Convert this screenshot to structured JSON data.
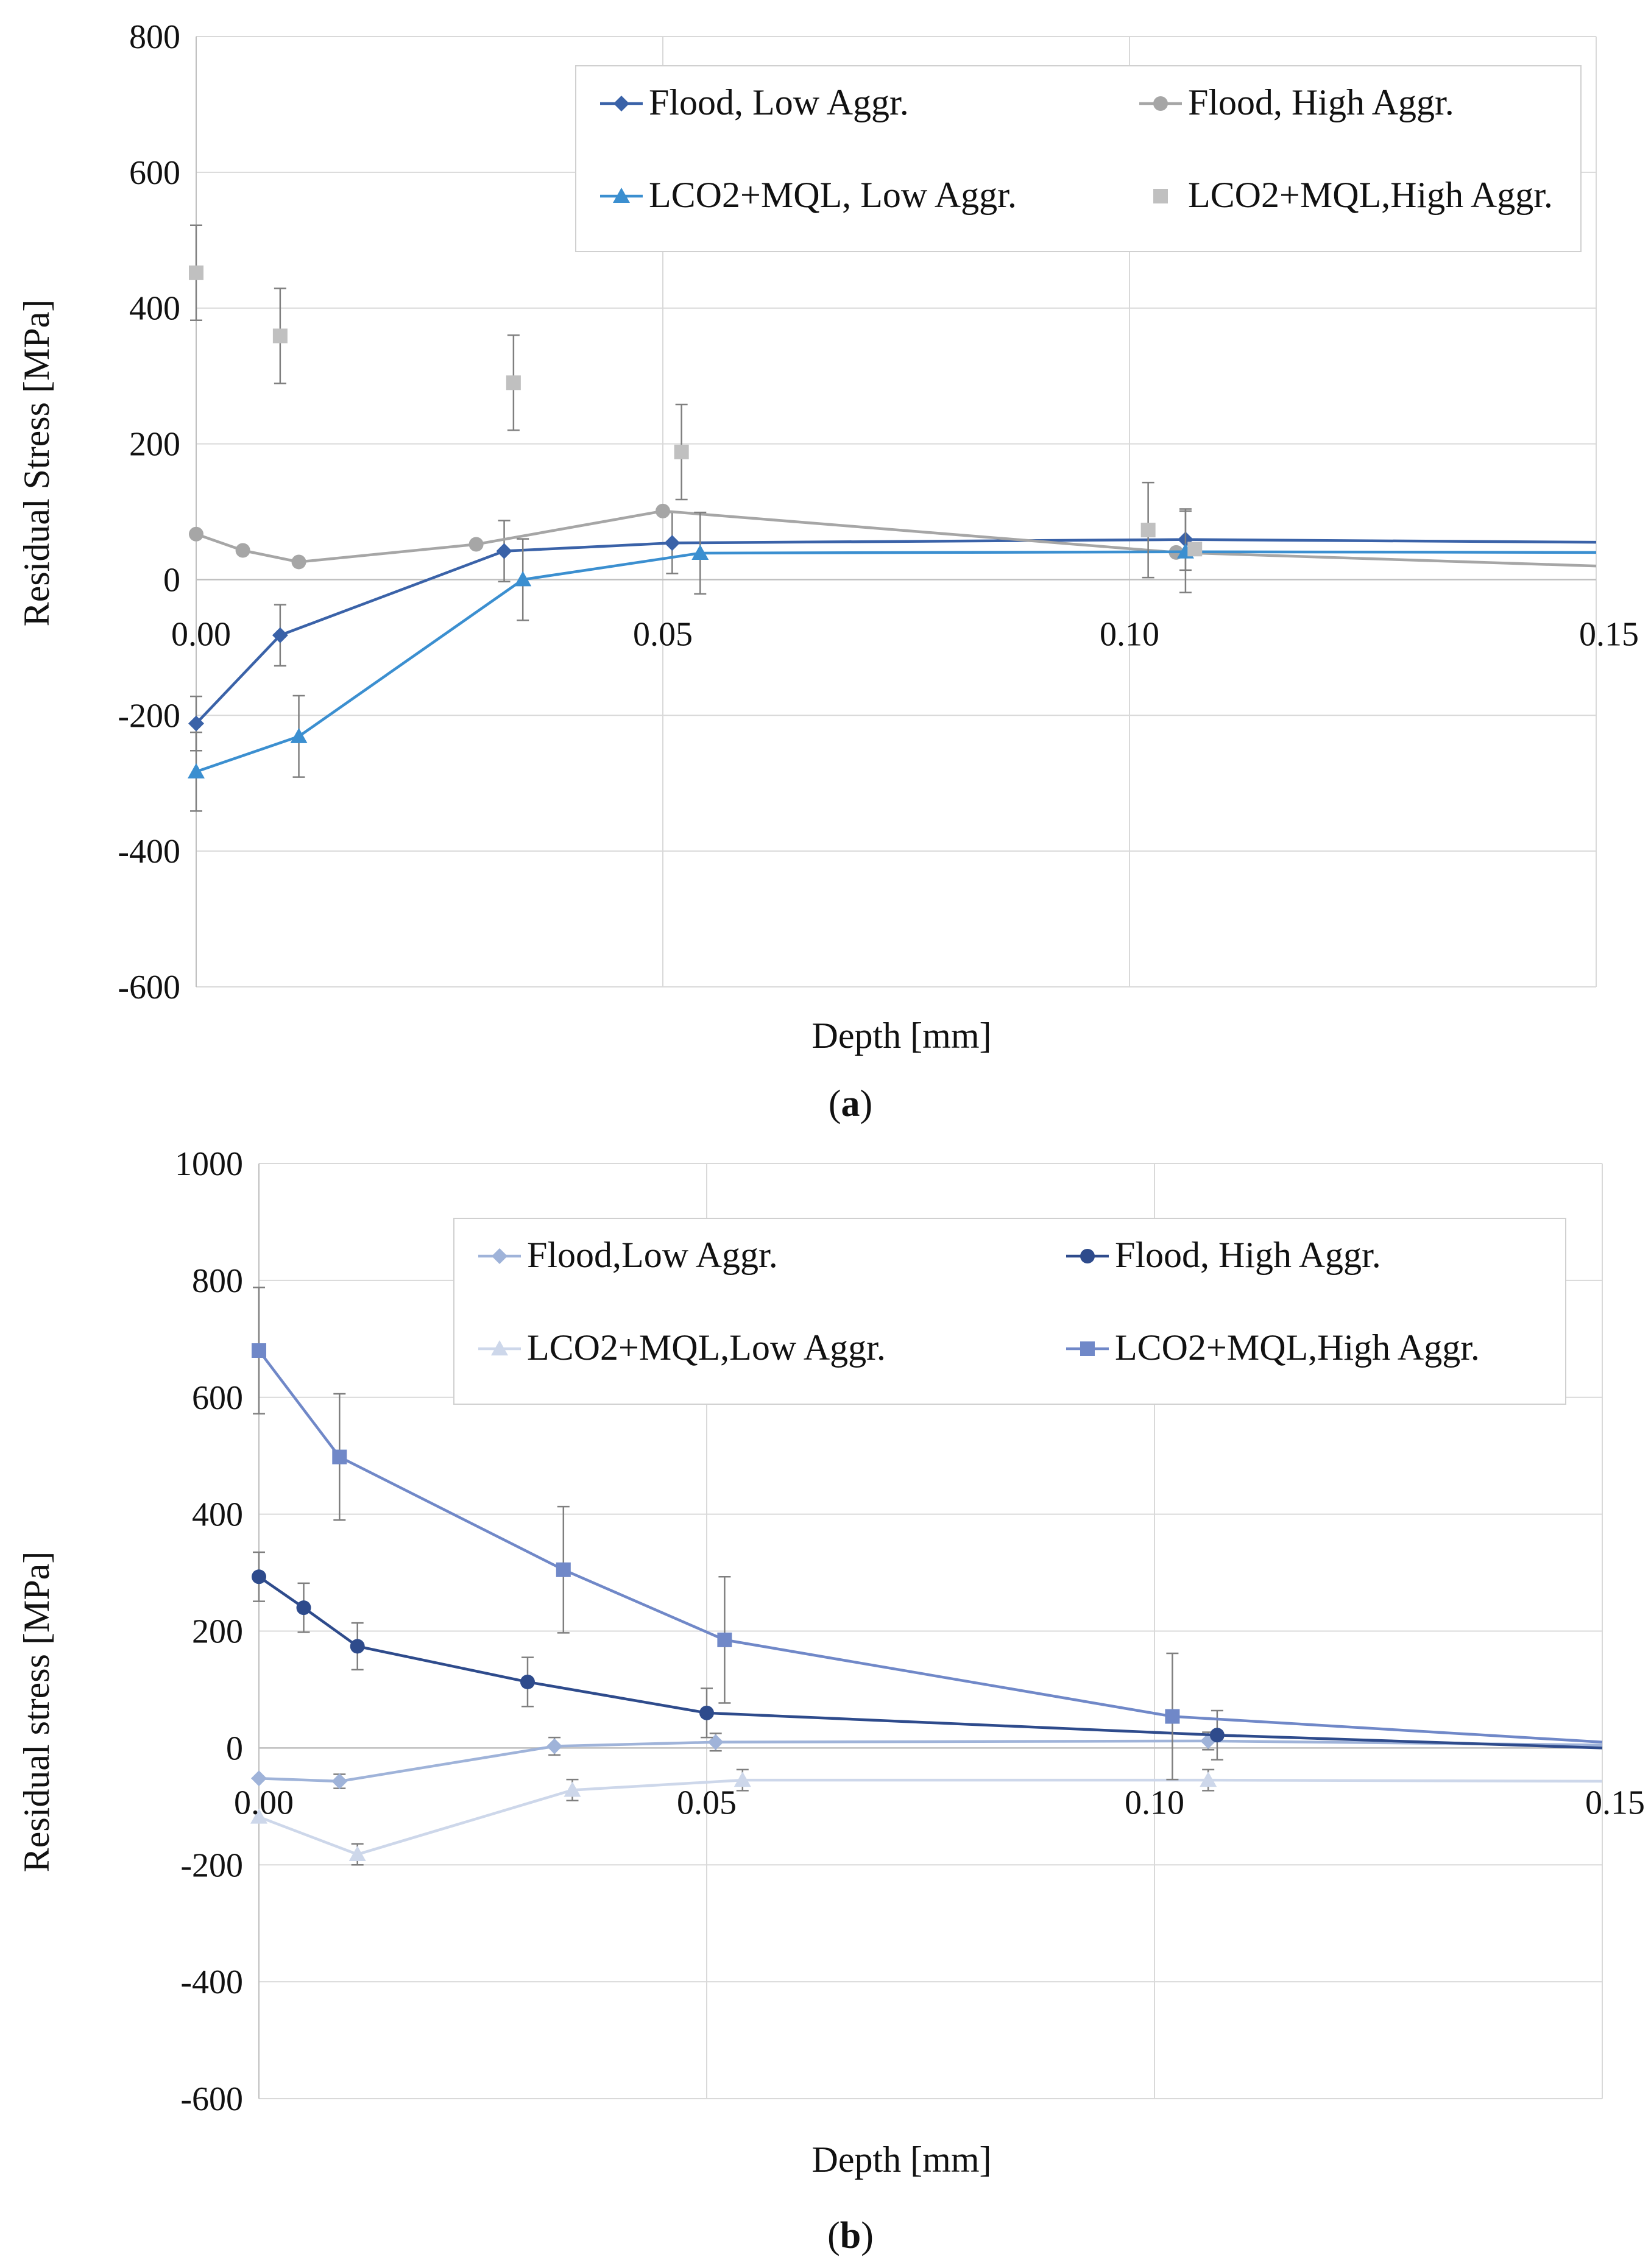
{
  "chart_data": [
    {
      "panel": "(a)",
      "panel_open": "(",
      "panel_letter": "a",
      "panel_close": ")",
      "type": "line",
      "xlabel": "Depth [mm]",
      "ylabel": "Residual Stress [MPa]",
      "xlim": [
        0,
        0.15
      ],
      "ylim": [
        -600,
        800
      ],
      "yticks": [
        800,
        600,
        400,
        200,
        0,
        -200,
        -400,
        -600
      ],
      "xticks": [
        0,
        0.05,
        0.1,
        0.15
      ],
      "xtick_labels": [
        "0.00",
        "0.05",
        "0.10",
        "0.15"
      ],
      "ytick_labels": [
        "800",
        "600",
        "400",
        "200",
        "0",
        "-200",
        "-400",
        "-600"
      ],
      "grid": true,
      "legend_position": "top-right",
      "series": [
        {
          "name": "Flood, Low Aggr.",
          "color": "#3a62a8",
          "marker": "diamond",
          "line": true,
          "x": [
            0.0,
            0.009,
            0.033,
            0.051,
            0.106,
            0.15
          ],
          "y": [
            -212,
            -82,
            42,
            54,
            59,
            55
          ],
          "err": [
            40,
            45,
            45,
            45,
            45,
            null
          ]
        },
        {
          "name": "Flood, High Aggr.",
          "color": "#a6a6a6",
          "marker": "circle",
          "line": true,
          "x": [
            0.0,
            0.005,
            0.011,
            0.03,
            0.05,
            0.105,
            0.15
          ],
          "y": [
            67,
            43,
            26,
            52,
            101,
            40,
            20
          ],
          "err": [
            null,
            null,
            null,
            null,
            null,
            null,
            null
          ]
        },
        {
          "name": "LCO2+MQL, Low Aggr.",
          "color": "#3b8fd0",
          "marker": "triangle",
          "line": true,
          "x": [
            0.0,
            0.011,
            0.035,
            0.054,
            0.106,
            0.15
          ],
          "y": [
            -283,
            -231,
            0,
            39,
            41,
            40
          ],
          "err": [
            58,
            60,
            60,
            60,
            60,
            null
          ]
        },
        {
          "name": "LCO2+MQL,High Aggr.",
          "color": "#c0c0c0",
          "marker": "square",
          "line": false,
          "x": [
            0.0,
            0.009,
            0.034,
            0.052,
            0.102,
            0.107
          ],
          "y": [
            452,
            359,
            290,
            188,
            73,
            45
          ],
          "err": [
            70,
            70,
            70,
            70,
            70,
            null
          ]
        }
      ],
      "legend_labels": [
        "Flood, Low Aggr.",
        "Flood, High Aggr.",
        "LCO2+MQL, Low Aggr.",
        "LCO2+MQL,High Aggr."
      ]
    },
    {
      "panel": "(b)",
      "panel_open": "(",
      "panel_letter": "b",
      "panel_close": ")",
      "type": "line",
      "xlabel": "Depth [mm]",
      "ylabel": "Residual stress [MPa]",
      "xlim": [
        0,
        0.15
      ],
      "ylim": [
        -600,
        1000
      ],
      "yticks": [
        1000,
        800,
        600,
        400,
        200,
        0,
        -200,
        -400,
        -600
      ],
      "xticks": [
        0,
        0.05,
        0.1,
        0.15
      ],
      "xtick_labels": [
        "0.00",
        "0.05",
        "0.10",
        "0.15"
      ],
      "ytick_labels": [
        "1000",
        "800",
        "600",
        "400",
        "200",
        "0",
        "-200",
        "-400",
        "-600"
      ],
      "grid": true,
      "legend_position": "top-right",
      "series": [
        {
          "name": "Flood,Low Aggr.",
          "color": "#9fb3d9",
          "marker": "diamond",
          "line": true,
          "x": [
            0.0,
            0.009,
            0.033,
            0.051,
            0.106,
            0.15
          ],
          "y": [
            -52,
            -57,
            3,
            10,
            12,
            5
          ],
          "err": [
            null,
            12,
            15,
            15,
            15,
            null
          ]
        },
        {
          "name": "Flood, High Aggr.",
          "color": "#2e4b8c",
          "marker": "circle",
          "line": true,
          "x": [
            0.0,
            0.005,
            0.011,
            0.03,
            0.05,
            0.107,
            0.15
          ],
          "y": [
            293,
            240,
            174,
            113,
            60,
            22,
            0
          ],
          "err": [
            42,
            42,
            40,
            42,
            42,
            42,
            null
          ]
        },
        {
          "name": "LCO2+MQL,Low Aggr.",
          "color": "#cdd7ea",
          "marker": "triangle",
          "line": true,
          "x": [
            0.0,
            0.011,
            0.035,
            0.054,
            0.106,
            0.15
          ],
          "y": [
            -118,
            -182,
            -72,
            -55,
            -55,
            -57
          ],
          "err": [
            null,
            18,
            18,
            18,
            18,
            null
          ]
        },
        {
          "name": "LCO2+MQL,High Aggr.",
          "color": "#7088c8",
          "marker": "square",
          "line": true,
          "x": [
            0.0,
            0.009,
            0.034,
            0.052,
            0.102,
            0.15
          ],
          "y": [
            680,
            498,
            305,
            185,
            54,
            10
          ],
          "err": [
            108,
            108,
            108,
            108,
            108,
            null
          ]
        }
      ],
      "legend_labels": [
        "Flood,Low Aggr.",
        "Flood, High Aggr.",
        "LCO2+MQL,Low Aggr.",
        "LCO2+MQL,High Aggr."
      ]
    }
  ]
}
